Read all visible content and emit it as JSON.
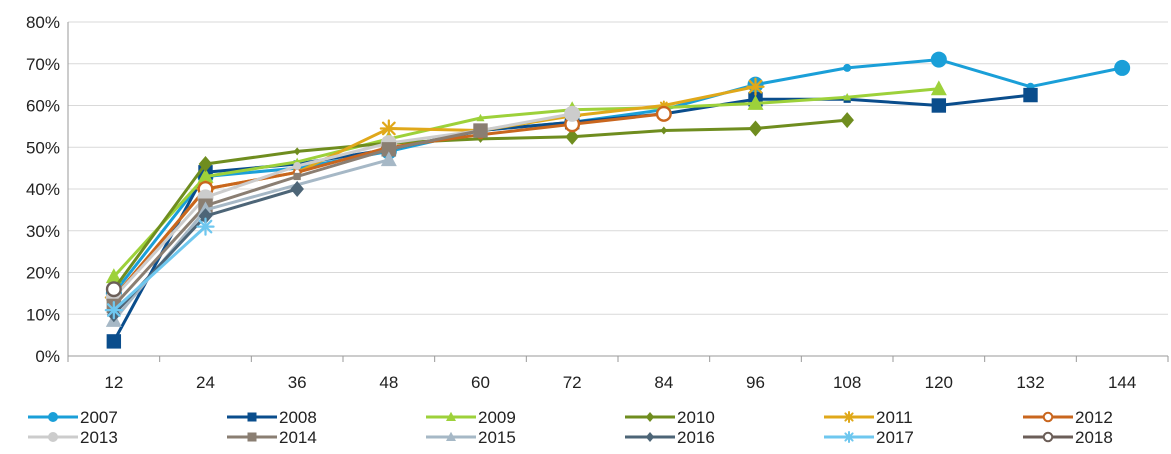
{
  "chart_data": {
    "type": "line",
    "title": "",
    "xlabel": "",
    "ylabel": "",
    "x": [
      12,
      24,
      36,
      48,
      60,
      72,
      84,
      96,
      108,
      120,
      132,
      144
    ],
    "x_tick_labels": [
      "12",
      "24",
      "36",
      "48",
      "60",
      "72",
      "84",
      "96",
      "108",
      "120",
      "132",
      "144"
    ],
    "ylim": [
      0,
      0.8
    ],
    "y_ticks": [
      0,
      0.1,
      0.2,
      0.3,
      0.4,
      0.5,
      0.6,
      0.7,
      0.8
    ],
    "y_tick_labels": [
      "0%",
      "10%",
      "20%",
      "30%",
      "40%",
      "50%",
      "60%",
      "70%",
      "80%"
    ],
    "grid": "horizontal",
    "legend_position": "bottom",
    "series": [
      {
        "name": "2007",
        "color": "#1a9fd8",
        "marker": "circle",
        "values": [
          0.15,
          0.43,
          0.45,
          0.49,
          0.54,
          0.56,
          0.59,
          0.65,
          0.69,
          0.71,
          0.645,
          0.69
        ]
      },
      {
        "name": "2008",
        "color": "#0a4d8c",
        "marker": "square",
        "values": [
          0.035,
          0.44,
          0.46,
          0.495,
          0.54,
          0.56,
          0.58,
          0.615,
          0.615,
          0.6,
          0.625,
          null
        ]
      },
      {
        "name": "2009",
        "color": "#9dd13a",
        "marker": "triangle",
        "values": [
          0.19,
          0.43,
          0.465,
          0.52,
          0.57,
          0.59,
          0.595,
          0.605,
          0.62,
          0.64,
          null,
          null
        ]
      },
      {
        "name": "2010",
        "color": "#6f8d1f",
        "marker": "diamond",
        "values": [
          0.16,
          0.46,
          0.49,
          0.51,
          0.52,
          0.525,
          0.54,
          0.545,
          0.565,
          null,
          null,
          null
        ]
      },
      {
        "name": "2011",
        "color": "#e0a81a",
        "marker": "star",
        "values": [
          0.14,
          0.4,
          0.44,
          0.545,
          0.54,
          0.575,
          0.6,
          0.645,
          null,
          null,
          null,
          null
        ]
      },
      {
        "name": "2012",
        "color": "#c9661e",
        "marker": "ring",
        "values": [
          0.14,
          0.4,
          0.44,
          0.5,
          0.53,
          0.555,
          0.58,
          null,
          null,
          null,
          null,
          null
        ]
      },
      {
        "name": "2013",
        "color": "#cccccc",
        "marker": "circle",
        "values": [
          0.14,
          0.38,
          0.455,
          0.51,
          0.54,
          0.58,
          null,
          null,
          null,
          null,
          null,
          null
        ]
      },
      {
        "name": "2014",
        "color": "#8a7e72",
        "marker": "square",
        "values": [
          0.12,
          0.36,
          0.43,
          0.495,
          0.54,
          null,
          null,
          null,
          null,
          null,
          null,
          null
        ]
      },
      {
        "name": "2015",
        "color": "#a6b8c6",
        "marker": "triangle",
        "values": [
          0.085,
          0.35,
          0.41,
          0.47,
          null,
          null,
          null,
          null,
          null,
          null,
          null,
          null
        ]
      },
      {
        "name": "2016",
        "color": "#4d6577",
        "marker": "diamond",
        "values": [
          0.1,
          0.335,
          0.4,
          null,
          null,
          null,
          null,
          null,
          null,
          null,
          null,
          null
        ]
      },
      {
        "name": "2017",
        "color": "#6ec7ef",
        "marker": "star",
        "values": [
          0.11,
          0.31,
          null,
          null,
          null,
          null,
          null,
          null,
          null,
          null,
          null,
          null
        ]
      },
      {
        "name": "2018",
        "color": "#6b5e58",
        "marker": "ring",
        "values": [
          0.16,
          null,
          null,
          null,
          null,
          null,
          null,
          null,
          null,
          null,
          null,
          null
        ]
      }
    ]
  }
}
